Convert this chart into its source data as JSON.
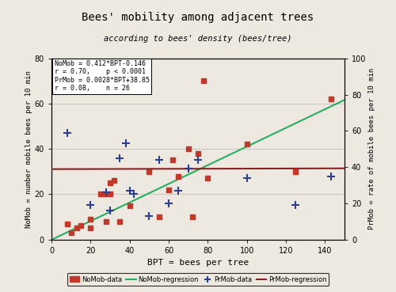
{
  "title": "Bees' mobility among adjacent trees",
  "subtitle": "according to bees' density (bees/tree)",
  "xlabel": "BPT = bees per tree",
  "ylabel_left": "NoMob = number mobile bees per 10 min",
  "ylabel_right": "PrMob = rate of mobile bees per 10 min",
  "annotation": "NoMob = 0.412*BPT-0.146\nr = 0.70,    p < 0.0001\nPrMob = 0.0028*BPT+38.85\nr = 0.08,    n = 26",
  "xlim": [
    0,
    150
  ],
  "ylim_left": [
    0,
    80
  ],
  "ylim_right": [
    0,
    100
  ],
  "xticks": [
    0,
    20,
    40,
    60,
    80,
    100,
    120,
    140
  ],
  "yticks_left": [
    0,
    20,
    40,
    60,
    80
  ],
  "yticks_right": [
    0,
    20,
    40,
    60,
    80,
    100
  ],
  "nomob_data_x": [
    8,
    10,
    13,
    15,
    20,
    20,
    25,
    27,
    28,
    30,
    30,
    32,
    35,
    40,
    50,
    55,
    60,
    62,
    65,
    70,
    72,
    75,
    78,
    80,
    100,
    125,
    143
  ],
  "nomob_data_y": [
    7,
    3,
    5,
    6,
    9,
    5,
    20,
    20,
    8,
    25,
    20,
    26,
    8,
    15,
    30,
    10,
    22,
    35,
    28,
    40,
    10,
    38,
    70,
    27,
    42,
    30,
    62
  ],
  "prmob_data_x": [
    8,
    20,
    28,
    30,
    35,
    38,
    40,
    42,
    50,
    55,
    60,
    65,
    70,
    75,
    100,
    125,
    143
  ],
  "prmob_data_y": [
    59,
    19,
    26,
    16,
    45,
    53,
    27,
    25,
    13,
    44,
    20,
    27,
    39,
    44,
    34,
    19,
    35
  ],
  "nomob_reg_slope": 0.412,
  "nomob_reg_intercept": -0.146,
  "prmob_reg_slope": 0.0028,
  "prmob_reg_intercept": 38.85,
  "nomob_color": "#c0392b",
  "prmob_color": "#2c3e8c",
  "nomob_line_color": "#27ae60",
  "prmob_line_color": "#8b2020",
  "bg_color": "#ede8e0",
  "grid_color": "#aaaaaa"
}
